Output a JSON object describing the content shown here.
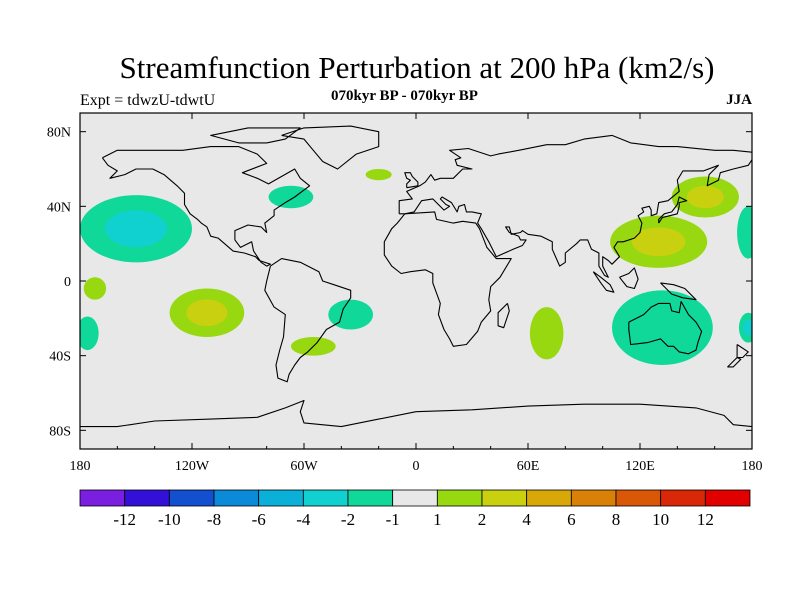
{
  "chart_data": {
    "type": "heatmap",
    "title": "Streamfunction Perturbation at 200 hPa (km2/s)",
    "subtitle": "070kyr BP - 070kyr BP",
    "left_label": "Expt = tdwzU-tdwtU",
    "right_label": "JJA",
    "xlim": [
      -180,
      180
    ],
    "ylim": [
      -90,
      90
    ],
    "x_ticks": [
      {
        "value": -180,
        "label": "180"
      },
      {
        "value": -120,
        "label": "120W"
      },
      {
        "value": -60,
        "label": "60W"
      },
      {
        "value": 0,
        "label": "0"
      },
      {
        "value": 60,
        "label": "60E"
      },
      {
        "value": 120,
        "label": "120E"
      },
      {
        "value": 180,
        "label": "180"
      }
    ],
    "y_ticks": [
      {
        "value": 80,
        "label": "80N"
      },
      {
        "value": 40,
        "label": "40N"
      },
      {
        "value": 0,
        "label": "0"
      },
      {
        "value": -40,
        "label": "40S"
      },
      {
        "value": -80,
        "label": "80S"
      }
    ],
    "colorbar": {
      "colors": [
        "#7a1fe0",
        "#3310d8",
        "#1250d0",
        "#0a8ad8",
        "#0ab0d8",
        "#10d0d0",
        "#10d898",
        "#e8e8e8",
        "#98d810",
        "#c8d010",
        "#d8a808",
        "#d88008",
        "#d85808",
        "#d82808",
        "#e00000"
      ],
      "labels": [
        "-12",
        "-10",
        "-8",
        "-6",
        "-4",
        "-2",
        "-1",
        "1",
        "2",
        "4",
        "6",
        "8",
        "10",
        "12"
      ]
    },
    "anomalies": [
      {
        "name": "NE Pacific negative",
        "lon": -150,
        "lat": 28,
        "rx": 30,
        "ry": 18,
        "levels": [
          -1,
          -2
        ]
      },
      {
        "name": "Central Pacific positive",
        "lon": -172,
        "lat": -4,
        "rx": 6,
        "ry": 6,
        "levels": [
          1
        ]
      },
      {
        "name": "SE Pacific positive",
        "lon": -112,
        "lat": -17,
        "rx": 20,
        "ry": 13,
        "levels": [
          1,
          2
        ]
      },
      {
        "name": "SW Pacific negative",
        "lon": -176,
        "lat": -28,
        "rx": 6,
        "ry": 9,
        "levels": [
          -1
        ]
      },
      {
        "name": "North America negative",
        "lon": -67,
        "lat": 45,
        "rx": 12,
        "ry": 6,
        "levels": [
          -1
        ]
      },
      {
        "name": "North Atlantic positive",
        "lon": -20,
        "lat": 57,
        "rx": 7,
        "ry": 3,
        "levels": [
          1
        ]
      },
      {
        "name": "South Atlantic negative",
        "lon": -35,
        "lat": -18,
        "rx": 12,
        "ry": 8,
        "levels": [
          -1
        ]
      },
      {
        "name": "South America positive",
        "lon": -55,
        "lat": -35,
        "rx": 12,
        "ry": 5,
        "levels": [
          1
        ]
      },
      {
        "name": "Indian Ocean positive",
        "lon": 70,
        "lat": -28,
        "rx": 9,
        "ry": 14,
        "levels": [
          1
        ]
      },
      {
        "name": "East Asia positive",
        "lon": 130,
        "lat": 21,
        "rx": 26,
        "ry": 14,
        "levels": [
          1,
          2
        ]
      },
      {
        "name": "NW Pacific positive",
        "lon": 155,
        "lat": 45,
        "rx": 18,
        "ry": 11,
        "levels": [
          1,
          2
        ]
      },
      {
        "name": "Australia negative",
        "lon": 132,
        "lat": -25,
        "rx": 27,
        "ry": 20,
        "levels": [
          -1
        ]
      },
      {
        "name": "Dateline negative",
        "lon": 178,
        "lat": 26,
        "rx": 6,
        "ry": 14,
        "levels": [
          -1
        ]
      },
      {
        "name": "SW Pacific near dateline negative",
        "lon": 178,
        "lat": -25,
        "rx": 5,
        "ry": 8,
        "levels": [
          -1,
          -2
        ]
      }
    ]
  }
}
